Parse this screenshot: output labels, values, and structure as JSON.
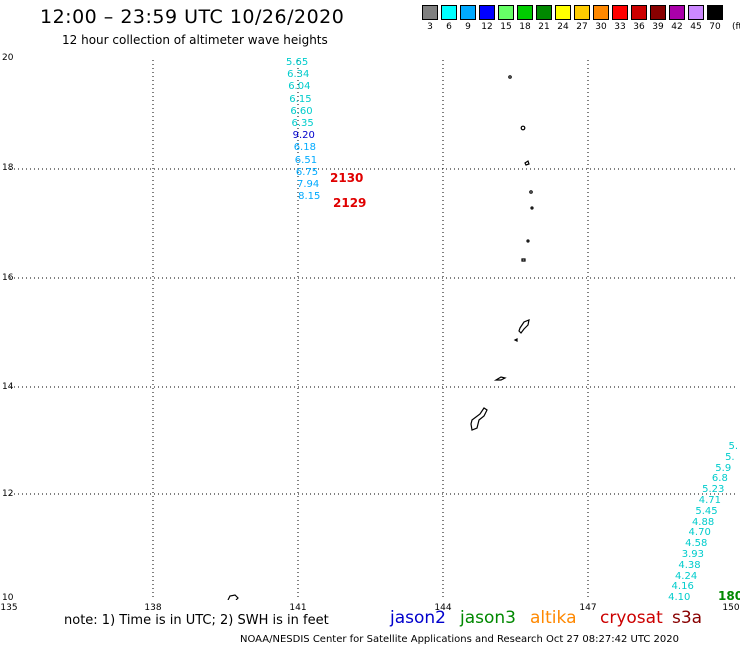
{
  "header": {
    "title": "12:00 – 23:59 UTC 10/26/2020",
    "subtitle": "12 hour collection of altimeter wave heights"
  },
  "colorscale": {
    "unit": "(ft)",
    "swatches": [
      {
        "label": "3",
        "color": "#808080"
      },
      {
        "label": "6",
        "color": "#00ffff"
      },
      {
        "label": "9",
        "color": "#00aaff"
      },
      {
        "label": "12",
        "color": "#0000ff"
      },
      {
        "label": "15",
        "color": "#66ff66"
      },
      {
        "label": "18",
        "color": "#00cc00"
      },
      {
        "label": "21",
        "color": "#008800"
      },
      {
        "label": "24",
        "color": "#ffff00"
      },
      {
        "label": "27",
        "color": "#ffcc00"
      },
      {
        "label": "30",
        "color": "#ff8800"
      },
      {
        "label": "33",
        "color": "#ff0000"
      },
      {
        "label": "36",
        "color": "#cc0000"
      },
      {
        "label": "39",
        "color": "#880000"
      },
      {
        "label": "42",
        "color": "#aa00aa"
      },
      {
        "label": "45",
        "color": "#cc88ff"
      },
      {
        "label": "70",
        "color": "#000000"
      }
    ]
  },
  "axes": {
    "lat_labels": [
      "20",
      "18",
      "16",
      "14",
      "12",
      "10"
    ],
    "lon_labels": [
      "135",
      "138",
      "141",
      "144",
      "147",
      "150"
    ]
  },
  "track_west": {
    "values": [
      {
        "v": "5.65",
        "color": "#00cccc"
      },
      {
        "v": "6.34",
        "color": "#00cccc"
      },
      {
        "v": "6.04",
        "color": "#00cccc"
      },
      {
        "v": "6.15",
        "color": "#00cccc"
      },
      {
        "v": "6.60",
        "color": "#00cccc"
      },
      {
        "v": "6.35",
        "color": "#00cccc"
      },
      {
        "v": "9.20",
        "color": "#0000cc"
      },
      {
        "v": "6.18",
        "color": "#00aaff"
      },
      {
        "v": "6.51",
        "color": "#00aaff"
      },
      {
        "v": "6.75",
        "color": "#00aaff"
      },
      {
        "v": "7.94",
        "color": "#00aaff"
      },
      {
        "v": "8.15",
        "color": "#00aaff"
      }
    ],
    "pass_labels": [
      "2130",
      "2129"
    ]
  },
  "track_east": {
    "values": [
      {
        "v": "5.",
        "color": "#00cccc"
      },
      {
        "v": "5.",
        "color": "#00cccc"
      },
      {
        "v": "5.9",
        "color": "#00cccc"
      },
      {
        "v": "6.8",
        "color": "#00cccc"
      },
      {
        "v": "5.23",
        "color": "#00cccc"
      },
      {
        "v": "4.71",
        "color": "#00cccc"
      },
      {
        "v": "5.45",
        "color": "#00cccc"
      },
      {
        "v": "4.88",
        "color": "#00cccc"
      },
      {
        "v": "4.70",
        "color": "#00cccc"
      },
      {
        "v": "4.58",
        "color": "#00cccc"
      },
      {
        "v": "3.93",
        "color": "#00cccc"
      },
      {
        "v": "4.38",
        "color": "#00cccc"
      },
      {
        "v": "4.24",
        "color": "#00cccc"
      },
      {
        "v": "4.16",
        "color": "#00cccc"
      },
      {
        "v": "4.10",
        "color": "#00cccc"
      }
    ],
    "pass_label": "180"
  },
  "note": "note:  1) Time is in UTC;  2) SWH is in feet",
  "legend": [
    {
      "name": "jason2",
      "color": "#0000cc"
    },
    {
      "name": "jason3",
      "color": "#008800"
    },
    {
      "name": "altika",
      "color": "#ff8800"
    },
    {
      "name": "cryosat",
      "color": "#cc0000"
    },
    {
      "name": "s3a",
      "color": "#880000"
    }
  ],
  "footer": "NOAA/NESDIS Center for Satellite Applications and Research     Oct 27 08:27:42 UTC 2020"
}
